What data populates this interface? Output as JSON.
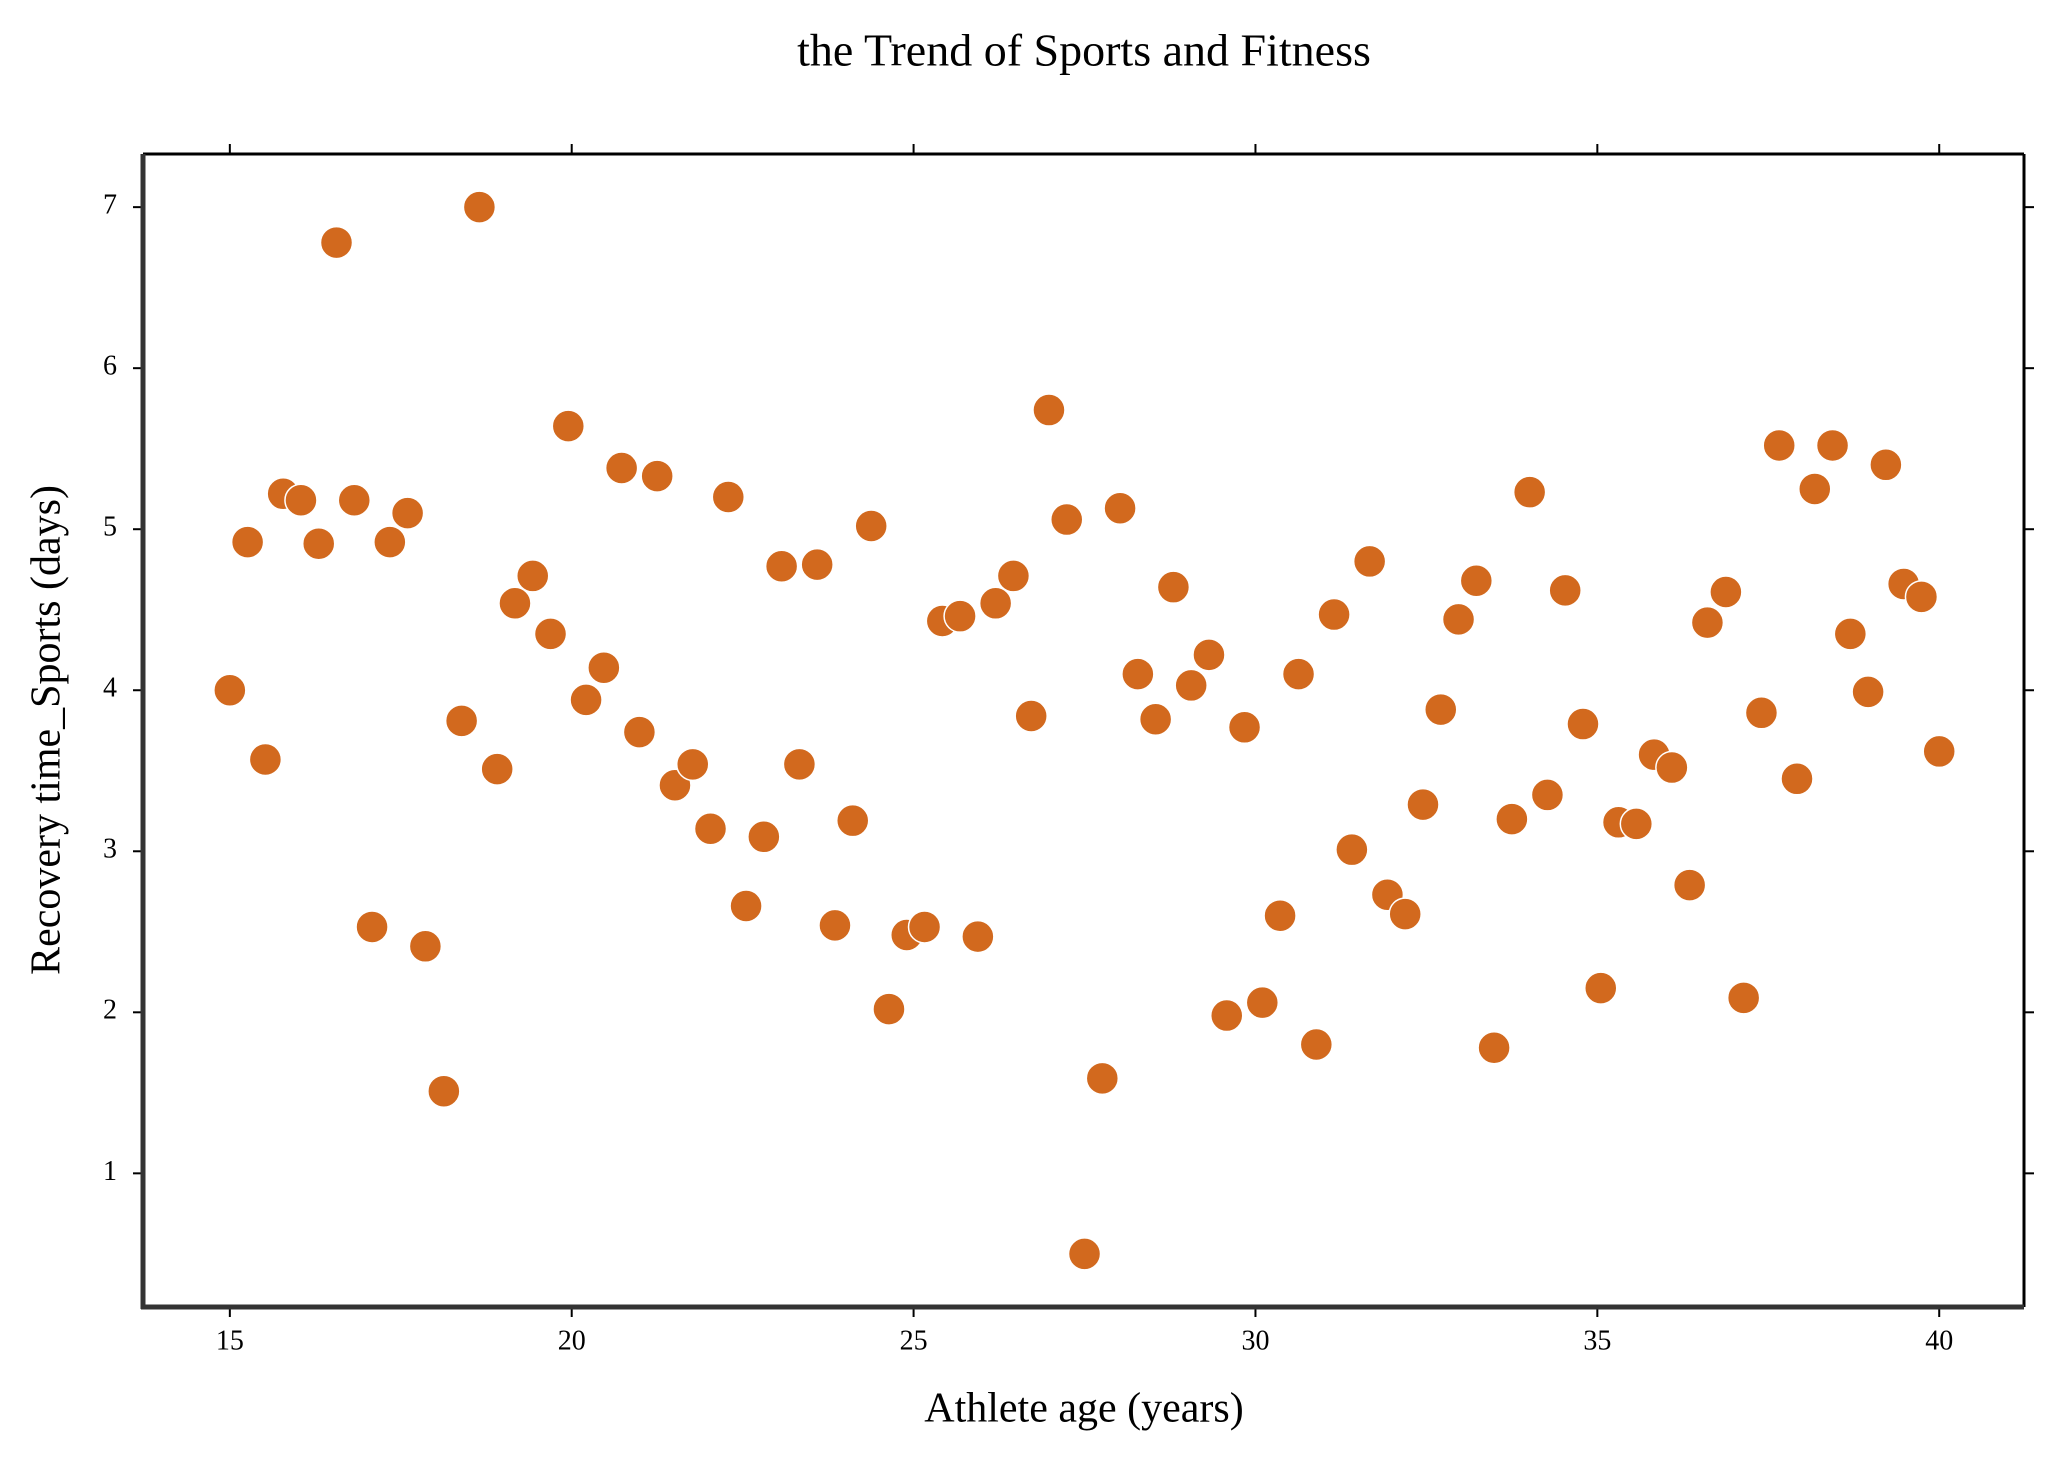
{
  "chart_data": {
    "type": "scatter",
    "title": "the Trend of Sports and Fitness",
    "x_label": "Athlete age (years)",
    "y_label": "Recovery time_Sports (days)",
    "color": "#d2691e",
    "xlim": [
      13.73,
      41.24
    ],
    "ylim": [
      0.17,
      7.33
    ],
    "xticks": [
      15,
      20,
      25,
      30,
      35,
      40
    ],
    "yticks": [
      1,
      2,
      3,
      4,
      5,
      6,
      7
    ],
    "grid": false,
    "series": [
      {
        "name": "Recovery time_Sports (days)",
        "color": "#d2691e",
        "x": [
          15.0,
          15.26,
          15.52,
          15.78,
          16.04,
          16.3,
          16.56,
          16.82,
          17.08,
          17.34,
          17.6,
          17.86,
          18.13,
          18.39,
          18.65,
          18.91,
          19.17,
          19.43,
          19.69,
          19.95,
          20.21,
          20.47,
          20.73,
          20.99,
          21.25,
          21.51,
          21.77,
          22.03,
          22.29,
          22.55,
          22.81,
          23.07,
          23.33,
          23.59,
          23.85,
          24.11,
          24.38,
          24.64,
          24.9,
          25.16,
          25.42,
          25.68,
          25.94,
          26.2,
          26.46,
          26.72,
          26.98,
          27.24,
          27.5,
          27.76,
          28.02,
          28.28,
          28.54,
          28.8,
          29.06,
          29.32,
          29.58,
          29.84,
          30.1,
          30.36,
          30.63,
          30.89,
          31.15,
          31.41,
          31.67,
          31.93,
          32.19,
          32.45,
          32.71,
          32.97,
          33.23,
          33.49,
          33.75,
          34.01,
          34.27,
          34.53,
          34.79,
          35.05,
          35.31,
          35.57,
          35.83,
          36.09,
          36.35,
          36.61,
          36.88,
          37.14,
          37.4,
          37.66,
          37.92,
          38.18,
          38.44,
          38.7,
          38.96,
          39.22,
          39.48,
          39.74,
          40.0
        ],
        "values": [
          4.0,
          4.92,
          3.57,
          5.22,
          5.18,
          4.91,
          6.78,
          5.18,
          2.53,
          4.92,
          5.1,
          2.41,
          1.51,
          3.81,
          7.0,
          3.51,
          4.54,
          4.71,
          4.35,
          5.64,
          3.94,
          4.14,
          5.38,
          3.74,
          5.33,
          3.41,
          3.54,
          3.14,
          5.2,
          2.66,
          3.09,
          4.77,
          3.54,
          4.78,
          2.54,
          3.19,
          5.02,
          2.02,
          2.48,
          2.53,
          4.43,
          4.46,
          2.47,
          4.54,
          4.71,
          3.84,
          5.74,
          5.06,
          0.5,
          1.59,
          5.13,
          4.1,
          3.82,
          4.64,
          4.03,
          4.22,
          1.98,
          3.77,
          2.06,
          2.6,
          4.1,
          1.8,
          4.47,
          3.01,
          4.8,
          2.73,
          2.61,
          3.29,
          3.88,
          4.44,
          4.68,
          1.78,
          3.2,
          5.23,
          3.35,
          4.62,
          3.79,
          2.15,
          3.18,
          3.17,
          3.6,
          3.52,
          2.79,
          4.42,
          4.61,
          2.09,
          3.86,
          5.52,
          3.45,
          5.25,
          5.52,
          4.35,
          3.99,
          5.4,
          4.66,
          4.58,
          3.62
        ]
      }
    ]
  }
}
